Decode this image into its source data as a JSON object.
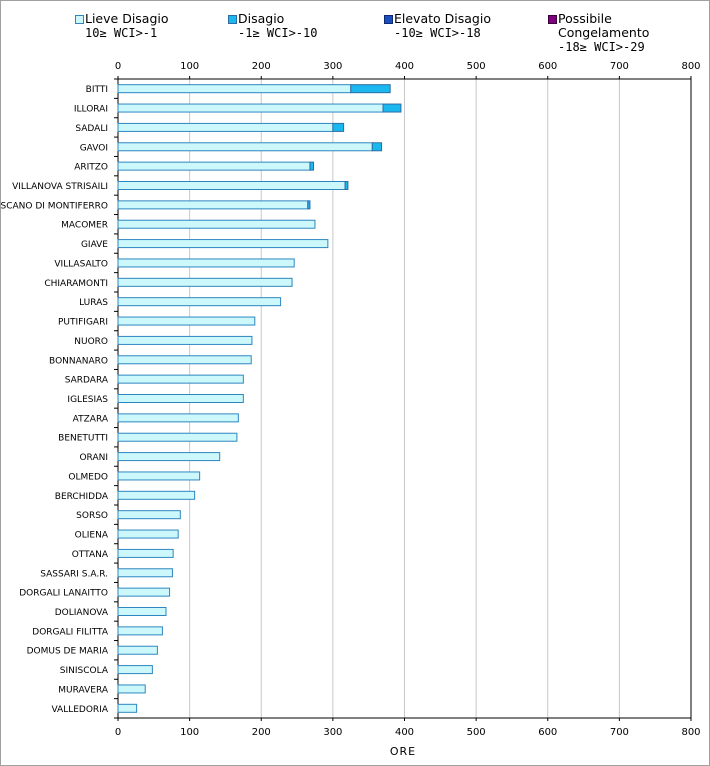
{
  "legend": [
    {
      "label": "Lieve Disagio",
      "range": "10≥ WCI>-1",
      "color": "#ccf8fb",
      "border": "#2e86c1"
    },
    {
      "label": "Disagio",
      "range": "-1≥ WCI>-10",
      "color": "#1ab8ee",
      "border": "#2e6da4"
    },
    {
      "label": "Elevato Disagio",
      "range": "-10≥ WCI>-18",
      "color": "#1b4fbf",
      "border": "#0d2a6e"
    },
    {
      "label": "Possibile",
      "label2": "Congelamento",
      "range": "-18≥ WCI>-29",
      "color": "#800080",
      "border": "#3a003a"
    }
  ],
  "chart_data": {
    "type": "bar",
    "orientation": "horizontal",
    "stacked": true,
    "xlabel": "ORE",
    "ylabel": "",
    "xlim": [
      0,
      800
    ],
    "xticks": [
      0,
      100,
      200,
      300,
      400,
      500,
      600,
      700,
      800
    ],
    "grid": true,
    "categories": [
      "BITTI",
      "ILLORAI",
      "SADALI",
      "GAVOI",
      "ARITZO",
      "VILLANOVA STRISAILI",
      "SCANO DI MONTIFERRO",
      "MACOMER",
      "GIAVE",
      "VILLASALTO",
      "CHIARAMONTI",
      "LURAS",
      "PUTIFIGARI",
      "NUORO",
      "BONNANARO",
      "SARDARA",
      "IGLESIAS",
      "ATZARA",
      "BENETUTTI",
      "ORANI",
      "OLMEDO",
      "BERCHIDDA",
      "SORSO",
      "OLIENA",
      "OTTANA",
      "SASSARI S.A.R.",
      "DORGALI LANAITTO",
      "DOLIANOVA",
      "DORGALI FILITTA",
      "DOMUS DE MARIA",
      "SINISCOLA",
      "MURAVERA",
      "VALLEDORIA"
    ],
    "series": [
      {
        "name": "Lieve Disagio",
        "values": [
          325,
          370,
          300,
          355,
          268,
          317,
          265,
          275,
          293,
          246,
          243,
          227,
          191,
          187,
          186,
          175,
          175,
          168,
          166,
          142,
          114,
          107,
          87,
          84,
          77,
          76,
          72,
          67,
          62,
          55,
          48,
          38,
          26
        ]
      },
      {
        "name": "Disagio",
        "values": [
          55,
          25,
          15,
          13,
          5,
          4,
          3,
          0,
          0,
          0,
          0,
          0,
          0,
          0,
          0,
          0,
          0,
          0,
          0,
          0,
          0,
          0,
          0,
          0,
          0,
          0,
          0,
          0,
          0,
          0,
          0,
          0,
          0
        ]
      },
      {
        "name": "Elevato Disagio",
        "values": [
          0,
          0,
          0,
          0,
          0,
          0,
          0,
          0,
          0,
          0,
          0,
          0,
          0,
          0,
          0,
          0,
          0,
          0,
          0,
          0,
          0,
          0,
          0,
          0,
          0,
          0,
          0,
          0,
          0,
          0,
          0,
          0,
          0
        ]
      },
      {
        "name": "Possibile Congelamento",
        "values": [
          0,
          0,
          0,
          0,
          0,
          0,
          0,
          0,
          0,
          0,
          0,
          0,
          0,
          0,
          0,
          0,
          0,
          0,
          0,
          0,
          0,
          0,
          0,
          0,
          0,
          0,
          0,
          0,
          0,
          0,
          0,
          0,
          0
        ]
      }
    ]
  }
}
